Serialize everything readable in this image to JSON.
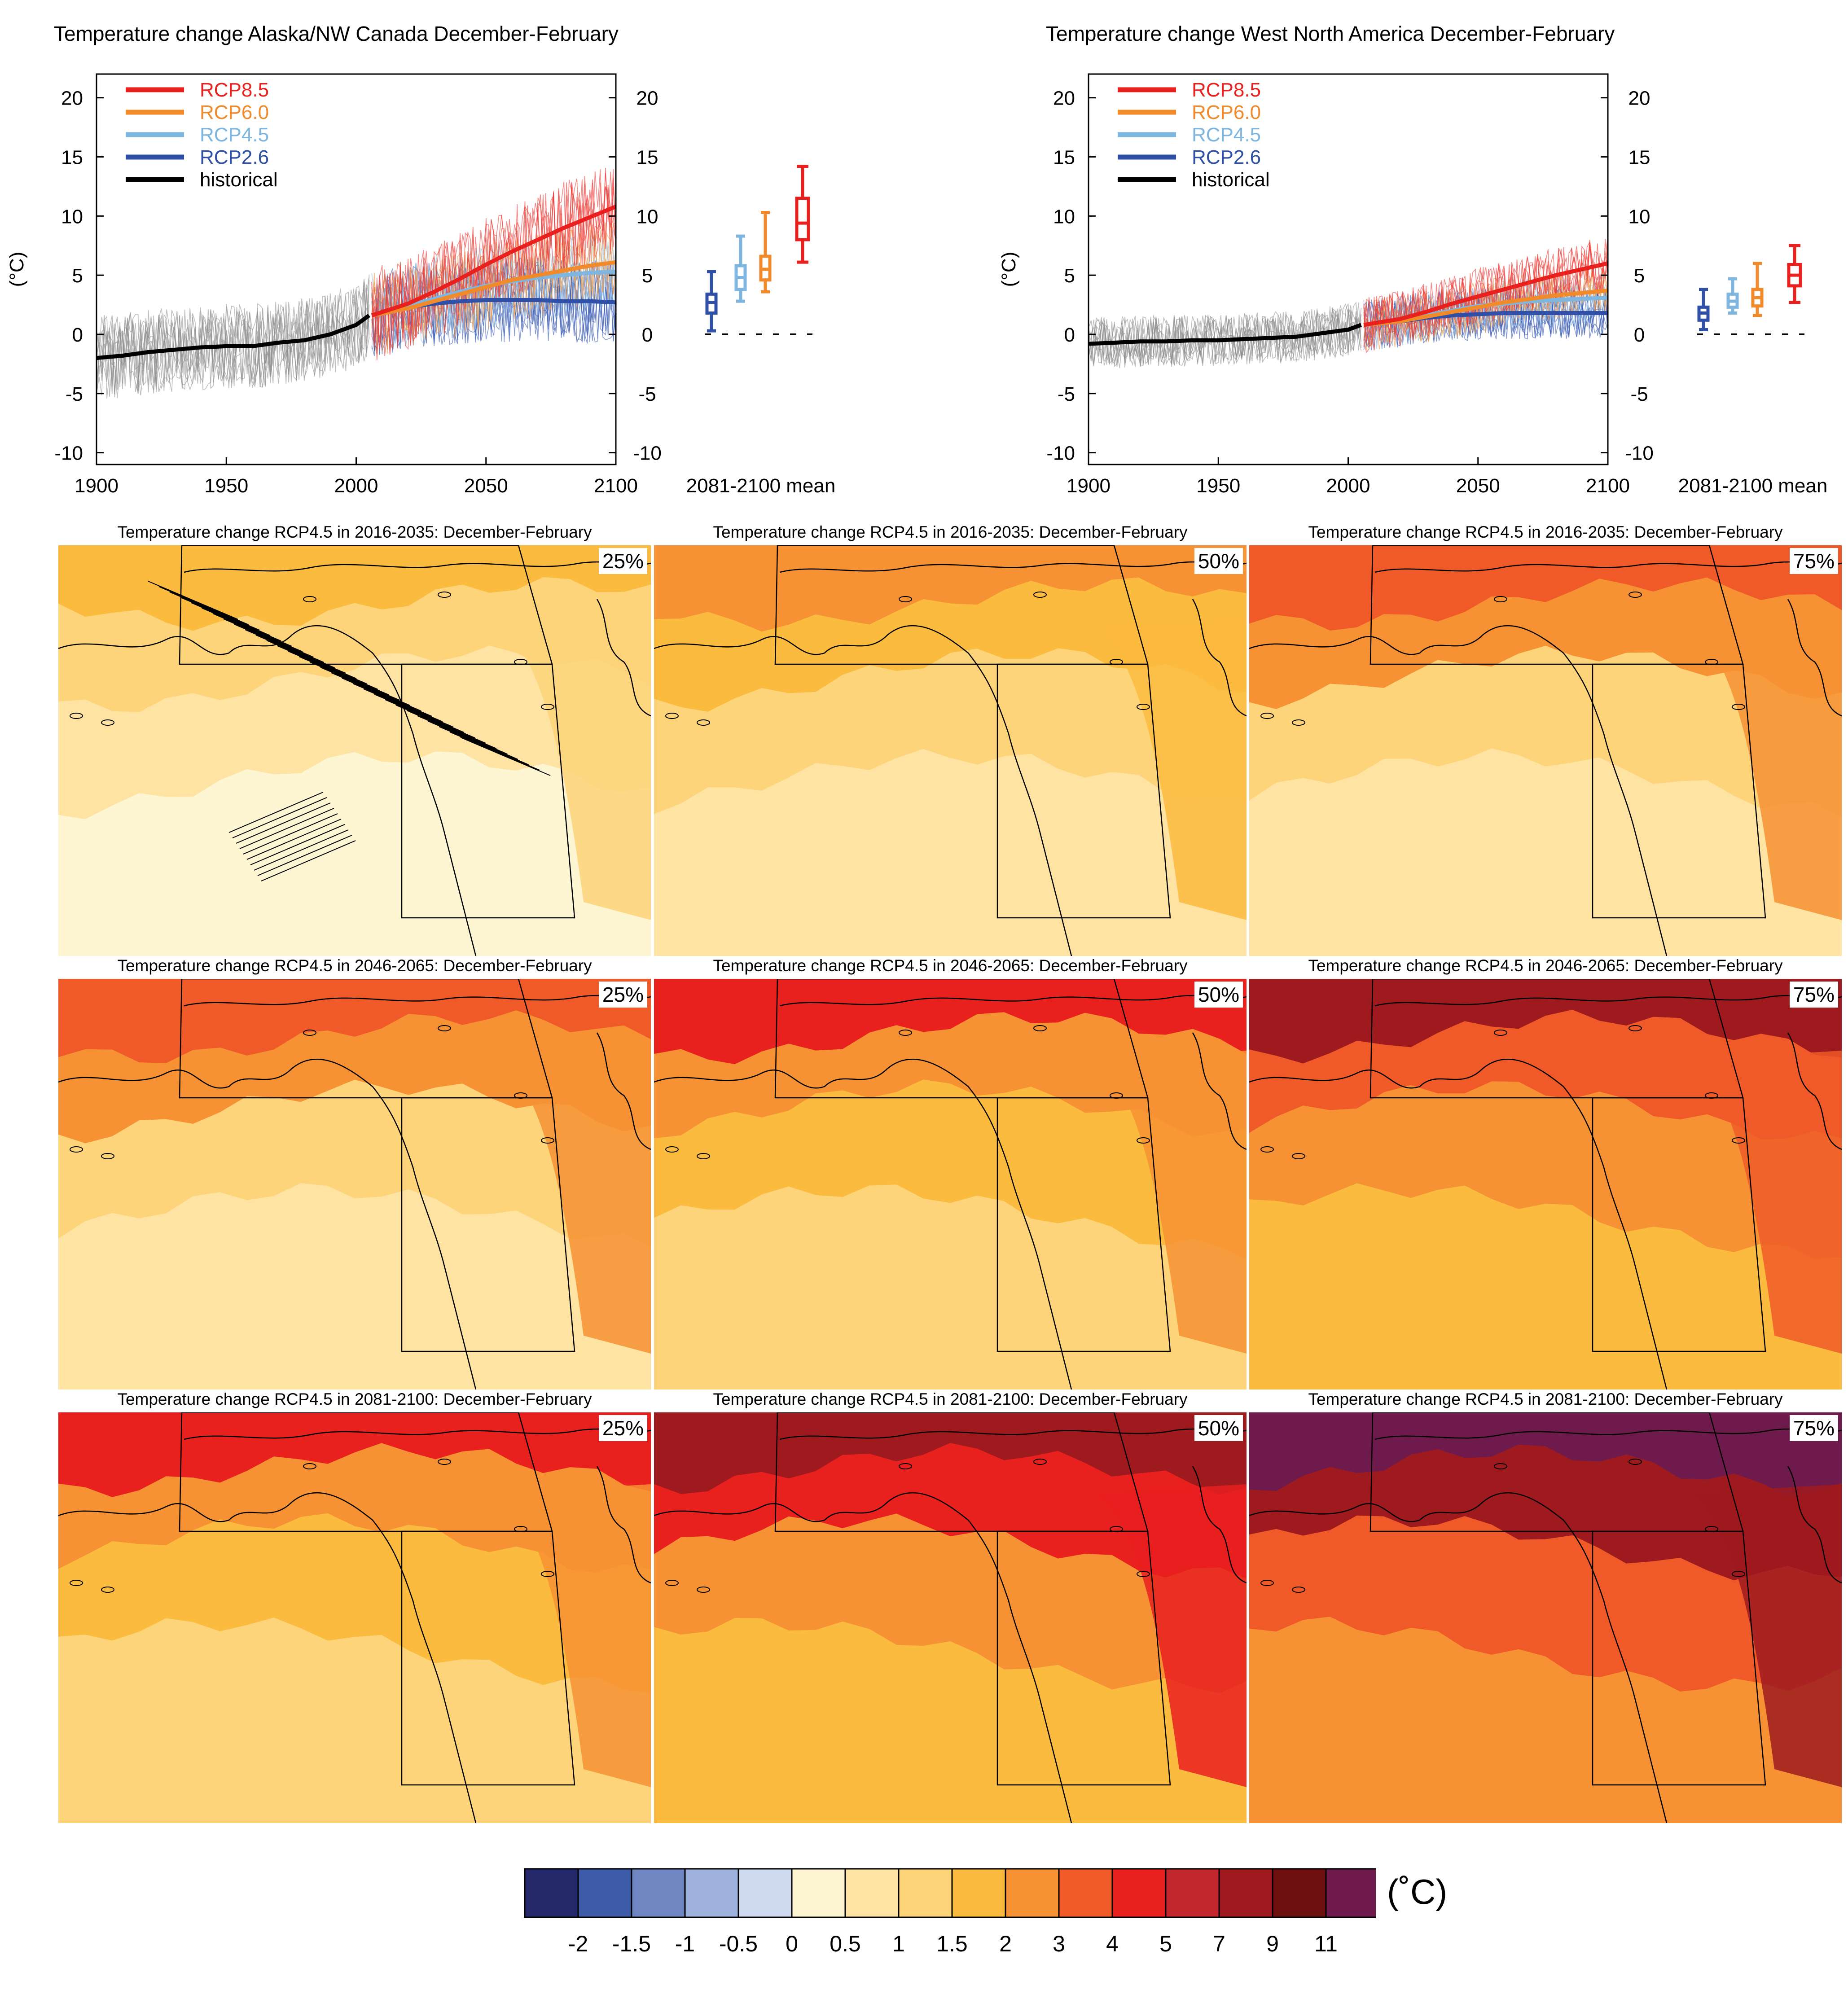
{
  "timeseries": [
    {
      "id": "alaska",
      "title": "Temperature change Alaska/NW Canada December-February"
    },
    {
      "id": "wna",
      "title": "Temperature change West North America December-February"
    }
  ],
  "chart_data": [
    {
      "type": "line",
      "title": "Temperature change Alaska/NW Canada December-February",
      "ylabel": "(°C)",
      "xlabel": "",
      "xlim": [
        1900,
        2100
      ],
      "ylim": [
        -11,
        22
      ],
      "x_ticks": [
        1900,
        1950,
        2000,
        2050,
        2100
      ],
      "y_ticks": [
        -10,
        -5,
        0,
        5,
        10,
        15,
        20
      ],
      "legend_position": "top-left",
      "series": [
        {
          "name": "RCP8.5",
          "color": "#e8201e",
          "x": [
            2006,
            2020,
            2030,
            2040,
            2050,
            2060,
            2070,
            2080,
            2090,
            2100
          ],
          "values": [
            1.6,
            2.6,
            3.6,
            4.7,
            5.9,
            7.0,
            8.0,
            9.0,
            9.9,
            10.8
          ]
        },
        {
          "name": "RCP6.0",
          "color": "#f08a2a",
          "x": [
            2006,
            2020,
            2030,
            2040,
            2050,
            2060,
            2070,
            2080,
            2090,
            2100
          ],
          "values": [
            1.6,
            2.2,
            2.8,
            3.4,
            4.0,
            4.6,
            5.0,
            5.4,
            5.8,
            6.1
          ]
        },
        {
          "name": "RCP4.5",
          "color": "#7eb6e0",
          "x": [
            2006,
            2020,
            2030,
            2040,
            2050,
            2060,
            2070,
            2080,
            2090,
            2100
          ],
          "values": [
            1.6,
            2.4,
            3.0,
            3.6,
            4.1,
            4.5,
            4.8,
            5.0,
            5.2,
            5.3
          ]
        },
        {
          "name": "RCP2.6",
          "color": "#3050a8",
          "x": [
            2006,
            2020,
            2030,
            2040,
            2050,
            2060,
            2070,
            2080,
            2090,
            2100
          ],
          "values": [
            1.6,
            2.3,
            2.6,
            2.8,
            2.9,
            2.9,
            2.9,
            2.8,
            2.8,
            2.7
          ]
        },
        {
          "name": "historical",
          "color": "#000000",
          "x": [
            1900,
            1910,
            1920,
            1930,
            1940,
            1950,
            1960,
            1970,
            1980,
            1990,
            2000,
            2005
          ],
          "values": [
            -2.0,
            -1.8,
            -1.5,
            -1.3,
            -1.1,
            -1.0,
            -1.0,
            -0.7,
            -0.5,
            0.0,
            0.8,
            1.6
          ]
        }
      ],
      "boxplots": {
        "label": "2081-2100 mean",
        "items": [
          {
            "name": "RCP2.6",
            "color": "#3050a8",
            "min": 0.3,
            "q1": 1.8,
            "median": 2.7,
            "q3": 3.4,
            "max": 5.3
          },
          {
            "name": "RCP4.5",
            "color": "#7eb6e0",
            "min": 2.8,
            "q1": 3.8,
            "median": 4.8,
            "q3": 5.8,
            "max": 8.3
          },
          {
            "name": "RCP6.0",
            "color": "#f08a2a",
            "min": 3.6,
            "q1": 4.6,
            "median": 5.5,
            "q3": 6.6,
            "max": 10.3
          },
          {
            "name": "RCP8.5",
            "color": "#e8201e",
            "min": 6.1,
            "q1": 8.0,
            "median": 9.4,
            "q3": 11.5,
            "max": 14.2
          }
        ]
      }
    },
    {
      "type": "line",
      "title": "Temperature change West North America December-February",
      "ylabel": "(°C)",
      "xlabel": "",
      "xlim": [
        1900,
        2100
      ],
      "ylim": [
        -11,
        22
      ],
      "x_ticks": [
        1900,
        1950,
        2000,
        2050,
        2100
      ],
      "y_ticks": [
        -10,
        -5,
        0,
        5,
        10,
        15,
        20
      ],
      "legend_position": "top-left",
      "series": [
        {
          "name": "RCP8.5",
          "color": "#e8201e",
          "x": [
            2006,
            2020,
            2030,
            2040,
            2050,
            2060,
            2070,
            2080,
            2090,
            2100
          ],
          "values": [
            0.8,
            1.3,
            1.9,
            2.6,
            3.2,
            3.8,
            4.4,
            5.0,
            5.5,
            6.0
          ]
        },
        {
          "name": "RCP6.0",
          "color": "#f08a2a",
          "x": [
            2006,
            2020,
            2030,
            2040,
            2050,
            2060,
            2070,
            2080,
            2090,
            2100
          ],
          "values": [
            0.8,
            1.1,
            1.5,
            1.9,
            2.3,
            2.7,
            3.0,
            3.3,
            3.5,
            3.7
          ]
        },
        {
          "name": "RCP4.5",
          "color": "#7eb6e0",
          "x": [
            2006,
            2020,
            2030,
            2040,
            2050,
            2060,
            2070,
            2080,
            2090,
            2100
          ],
          "values": [
            0.8,
            1.2,
            1.6,
            2.0,
            2.4,
            2.6,
            2.8,
            2.9,
            3.0,
            3.1
          ]
        },
        {
          "name": "RCP2.6",
          "color": "#3050a8",
          "x": [
            2006,
            2020,
            2030,
            2040,
            2050,
            2060,
            2070,
            2080,
            2090,
            2100
          ],
          "values": [
            0.8,
            1.1,
            1.4,
            1.6,
            1.7,
            1.8,
            1.8,
            1.8,
            1.8,
            1.8
          ]
        },
        {
          "name": "historical",
          "color": "#000000",
          "x": [
            1900,
            1910,
            1920,
            1930,
            1940,
            1950,
            1960,
            1970,
            1980,
            1990,
            2000,
            2005
          ],
          "values": [
            -0.8,
            -0.7,
            -0.6,
            -0.6,
            -0.5,
            -0.5,
            -0.4,
            -0.3,
            -0.2,
            0.1,
            0.4,
            0.8
          ]
        }
      ],
      "boxplots": {
        "label": "2081-2100 mean",
        "items": [
          {
            "name": "RCP2.6",
            "color": "#3050a8",
            "min": 0.4,
            "q1": 1.2,
            "median": 1.8,
            "q3": 2.3,
            "max": 3.8
          },
          {
            "name": "RCP4.5",
            "color": "#7eb6e0",
            "min": 1.8,
            "q1": 2.3,
            "median": 2.8,
            "q3": 3.4,
            "max": 4.7
          },
          {
            "name": "RCP6.0",
            "color": "#f08a2a",
            "min": 1.6,
            "q1": 2.4,
            "median": 3.1,
            "q3": 3.8,
            "max": 6.0
          },
          {
            "name": "RCP8.5",
            "color": "#e8201e",
            "min": 2.7,
            "q1": 4.1,
            "median": 5.0,
            "q3": 5.9,
            "max": 7.5
          }
        ]
      }
    }
  ],
  "maps": {
    "rows": [
      {
        "period": "2016-2035",
        "title": "Temperature change RCP4.5 in 2016-2035: December-February",
        "panels": [
          {
            "pct": "25%",
            "palette": [
              "#fef6d2",
              "#fee3a3",
              "#fdd47a",
              "#fbbb3e"
            ]
          },
          {
            "pct": "50%",
            "palette": [
              "#fee3a3",
              "#fdd47a",
              "#fbbb3e",
              "#f69234"
            ]
          },
          {
            "pct": "75%",
            "palette": [
              "#fee3a3",
              "#fdd47a",
              "#f69234",
              "#ef5a28"
            ]
          }
        ]
      },
      {
        "period": "2046-2065",
        "title": "Temperature change RCP4.5 in 2046-2065: December-February",
        "panels": [
          {
            "pct": "25%",
            "palette": [
              "#fee3a3",
              "#fdd47a",
              "#f69234",
              "#ef5a28"
            ]
          },
          {
            "pct": "50%",
            "palette": [
              "#fdd47a",
              "#fbbb3e",
              "#f69234",
              "#e8201e"
            ]
          },
          {
            "pct": "75%",
            "palette": [
              "#fbbb3e",
              "#f69234",
              "#ef5a28",
              "#9e1a1f"
            ]
          }
        ]
      },
      {
        "period": "2081-2100",
        "title": "Temperature change RCP4.5 in 2081-2100: December-February",
        "panels": [
          {
            "pct": "25%",
            "palette": [
              "#fdd47a",
              "#fbbb3e",
              "#f69234",
              "#e8201e"
            ]
          },
          {
            "pct": "50%",
            "palette": [
              "#fbbb3e",
              "#f69234",
              "#e8201e",
              "#9e1a1f"
            ]
          },
          {
            "pct": "75%",
            "palette": [
              "#f69234",
              "#ef5a28",
              "#9e1a1f",
              "#6e1a4d"
            ]
          }
        ]
      }
    ]
  },
  "colorbar": {
    "unit": "(˚C)",
    "colors": [
      "#24286a",
      "#3e5ba9",
      "#6f86c3",
      "#9fb2dd",
      "#cfdaf0",
      "#fef6d2",
      "#fee3a3",
      "#fdd47a",
      "#fbbb3e",
      "#f69234",
      "#ef5a28",
      "#e8201e",
      "#c1272d",
      "#9e1a1f",
      "#6d0f0f",
      "#6e1a4d"
    ],
    "labels": [
      "-2",
      "-1.5",
      "-1",
      "-0.5",
      "0",
      "0.5",
      "1",
      "1.5",
      "2",
      "3",
      "4",
      "5",
      "7",
      "9",
      "11"
    ]
  }
}
